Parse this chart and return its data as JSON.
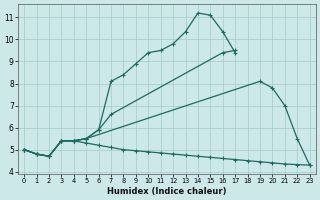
{
  "xlabel": "Humidex (Indice chaleur)",
  "background_color": "#cce8e8",
  "grid_color": "#aacece",
  "line_color": "#1a6b60",
  "xlim": [
    -0.5,
    23.5
  ],
  "ylim": [
    3.9,
    11.6
  ],
  "xticks": [
    0,
    1,
    2,
    3,
    4,
    5,
    6,
    7,
    8,
    9,
    10,
    11,
    12,
    13,
    14,
    15,
    16,
    17,
    18,
    19,
    20,
    21,
    22,
    23
  ],
  "yticks": [
    4,
    5,
    6,
    7,
    8,
    9,
    10,
    11
  ],
  "series1_x": [
    0,
    1,
    2,
    3,
    4,
    5,
    6,
    7,
    8,
    9,
    10,
    11,
    12,
    13,
    14,
    15,
    16,
    17
  ],
  "series1_y": [
    5.0,
    4.8,
    4.7,
    5.4,
    5.4,
    5.5,
    5.9,
    8.1,
    8.4,
    8.9,
    9.4,
    9.5,
    9.8,
    10.35,
    11.2,
    11.1,
    10.35,
    9.4
  ],
  "series2_x": [
    0,
    1,
    2,
    3,
    4,
    5,
    6,
    7,
    16,
    17
  ],
  "series2_y": [
    5.0,
    4.8,
    4.7,
    5.4,
    5.4,
    5.5,
    5.9,
    6.6,
    9.4,
    9.5
  ],
  "series3_x": [
    0,
    1,
    2,
    3,
    4,
    5,
    19,
    20,
    21,
    22,
    23
  ],
  "series3_y": [
    5.0,
    4.8,
    4.7,
    5.4,
    5.4,
    5.5,
    8.1,
    7.8,
    7.0,
    5.5,
    4.3
  ],
  "series4_x": [
    0,
    1,
    2,
    3,
    4,
    5,
    6,
    7,
    8,
    9,
    10,
    11,
    12,
    13,
    14,
    15,
    16,
    17,
    18,
    19,
    20,
    21,
    22,
    23
  ],
  "series4_y": [
    5.0,
    4.8,
    4.7,
    5.4,
    5.4,
    5.3,
    5.2,
    5.1,
    5.0,
    4.95,
    4.9,
    4.85,
    4.8,
    4.75,
    4.7,
    4.65,
    4.6,
    4.55,
    4.5,
    4.45,
    4.4,
    4.35,
    4.32,
    4.3
  ]
}
